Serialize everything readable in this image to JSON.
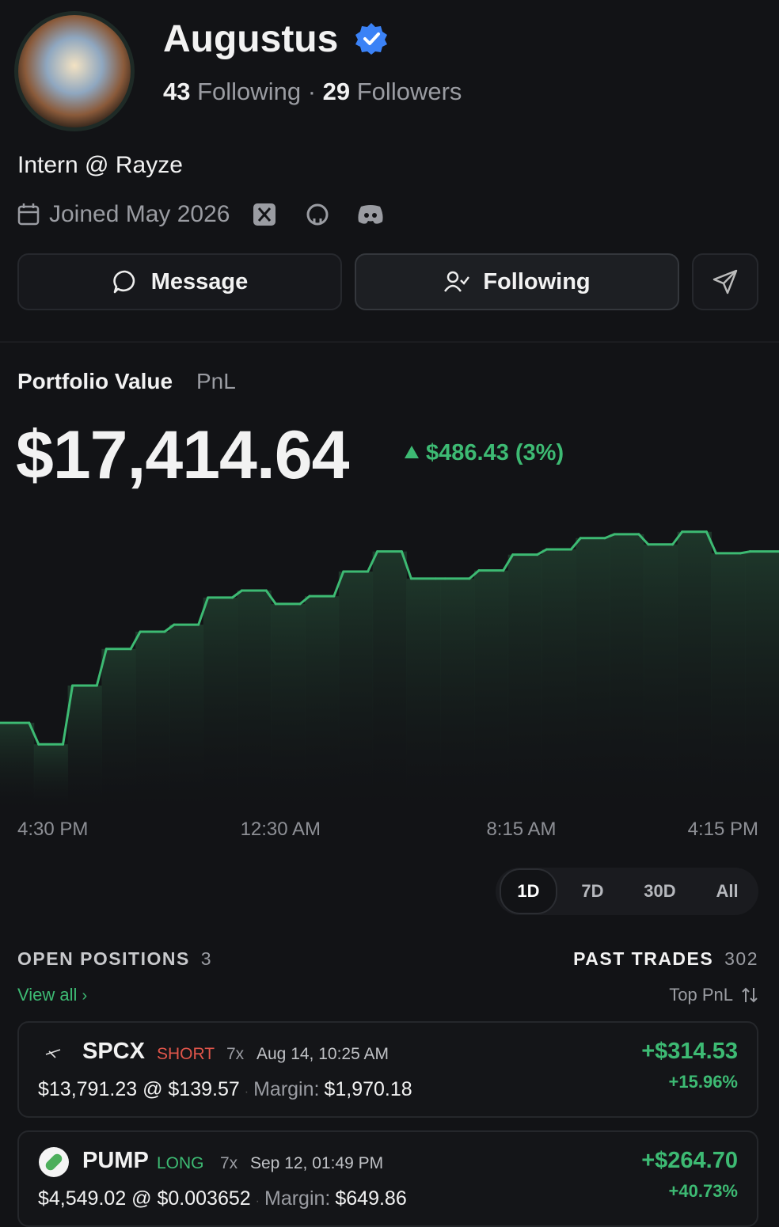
{
  "profile": {
    "name": "Augustus",
    "following_count": "43",
    "following_label": "Following",
    "separator": "·",
    "followers_count": "29",
    "followers_label": "Followers",
    "bio": "Intern @ Rayze",
    "joined": "Joined May 2026"
  },
  "actions": {
    "message": "Message",
    "follow": "Following"
  },
  "portfolio": {
    "tabs": [
      "Portfolio Value",
      "PnL"
    ],
    "value": "$17,414.64",
    "change": "$486.43 (3%)",
    "ranges": [
      "1D",
      "7D",
      "30D",
      "All"
    ],
    "selected_range": 0
  },
  "chart_data": {
    "type": "step",
    "color": "#3dba73",
    "values": [
      16928,
      16867,
      17034,
      17138,
      17187,
      17207,
      17284,
      17304,
      17266,
      17288,
      17358,
      17415,
      17338,
      17338,
      17361,
      17406,
      17421,
      17453,
      17464,
      17435,
      17471,
      17410,
      17415
    ],
    "ylim": [
      16710,
      17520
    ],
    "x_labels": [
      "4:30 PM",
      "12:30 AM",
      "8:15 AM",
      "4:15 PM"
    ]
  },
  "positions_header": {
    "open_label": "OPEN POSITIONS",
    "open_count": "3",
    "view_all": "View all",
    "past_label": "PAST TRADES",
    "past_count": "302",
    "sort": "Top PnL"
  },
  "positions": [
    {
      "symbol": "SPCX",
      "side": "SHORT",
      "leverage": "7x",
      "time": "Aug 14, 10:25 AM",
      "size": "$13,791.23 @ $139.57",
      "margin_label": "Margin:",
      "margin": "$1,970.18",
      "pnl": "+$314.53",
      "pnl_pct": "+15.96%"
    },
    {
      "symbol": "PUMP",
      "side": "LONG",
      "leverage": "7x",
      "time": "Sep 12, 01:49 PM",
      "size": "$4,549.02 @ $0.003652",
      "margin_label": "Margin:",
      "margin": "$649.86",
      "pnl": "+$264.70",
      "pnl_pct": "+40.73%"
    }
  ]
}
